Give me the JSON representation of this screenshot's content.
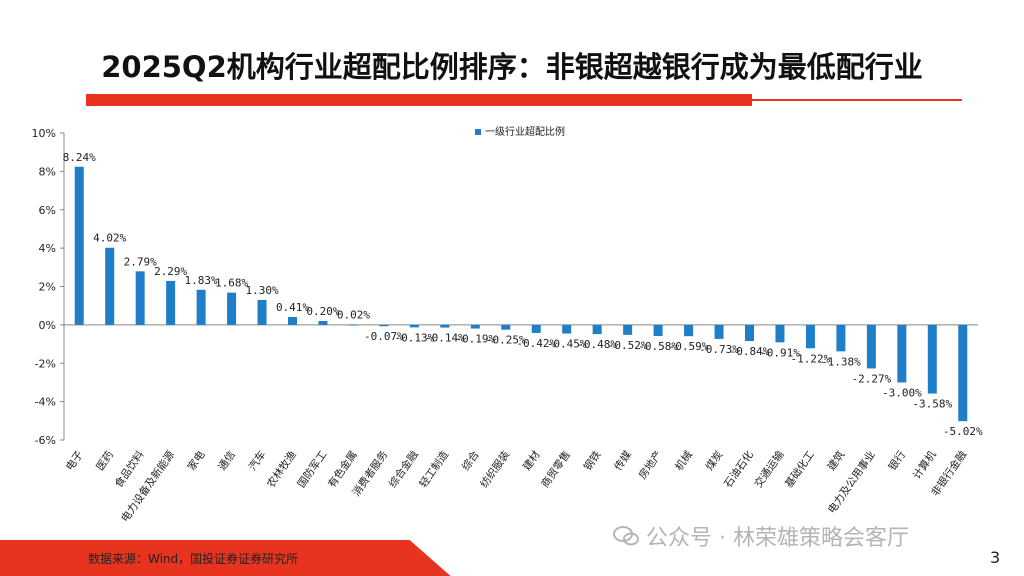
{
  "title": "2025Q2机构行业超配比例排序：非银超越银行成为最低配行业",
  "source": "数据来源：Wind，国投证券证券研究所",
  "watermark": "公众号 · 林荣雄策略会客厅",
  "page_number": "3",
  "colors": {
    "accent": "#e8331e",
    "bar": "#1f7ec8"
  },
  "chart_data": {
    "type": "bar",
    "series": [
      {
        "name": "一级行业超配比例",
        "values": [
          8.24,
          4.02,
          2.79,
          2.29,
          1.83,
          1.68,
          1.3,
          0.41,
          0.2,
          0.02,
          -0.07,
          -0.13,
          -0.14,
          -0.19,
          -0.25,
          -0.42,
          -0.45,
          -0.48,
          -0.52,
          -0.58,
          -0.59,
          -0.73,
          -0.84,
          -0.91,
          -1.22,
          -1.38,
          -2.27,
          -3.0,
          -3.58,
          -5.02
        ]
      }
    ],
    "categories": [
      "电子",
      "医药",
      "食品饮料",
      "电力设备及新能源",
      "家电",
      "通信",
      "汽车",
      "农林牧渔",
      "国防军工",
      "有色金属",
      "消费者服务",
      "综合金融",
      "轻工制造",
      "综合",
      "纺织服装",
      "建材",
      "商贸零售",
      "钢铁",
      "传媒",
      "房地产",
      "机械",
      "煤炭",
      "石油石化",
      "交通运输",
      "基础化工",
      "建筑",
      "电力及公用事业",
      "银行",
      "计算机",
      "非银行金融"
    ],
    "data_labels": [
      "8.24%",
      "4.02%",
      "2.79%",
      "2.29%",
      "1.83%",
      "1.68%",
      "1.30%",
      "0.41%",
      "0.20%",
      "0.02%",
      "-0.07%",
      "-0.13%",
      "-0.14%",
      "-0.19%",
      "-0.25%",
      "-0.42%",
      "-0.45%",
      "-0.48%",
      "-0.52%",
      "-0.58%",
      "-0.59%",
      "-0.73%",
      "-0.84%",
      "-0.91%",
      "-1.22%",
      "-1.38%",
      "-2.27%",
      "-3.00%",
      "-3.58%",
      "-5.02%"
    ],
    "yticks": [
      "10%",
      "8%",
      "6%",
      "4%",
      "2%",
      "0%",
      "-2%",
      "-4%",
      "-6%"
    ],
    "ylim": [
      -6,
      10
    ],
    "legend": "top-center",
    "grid": false
  }
}
